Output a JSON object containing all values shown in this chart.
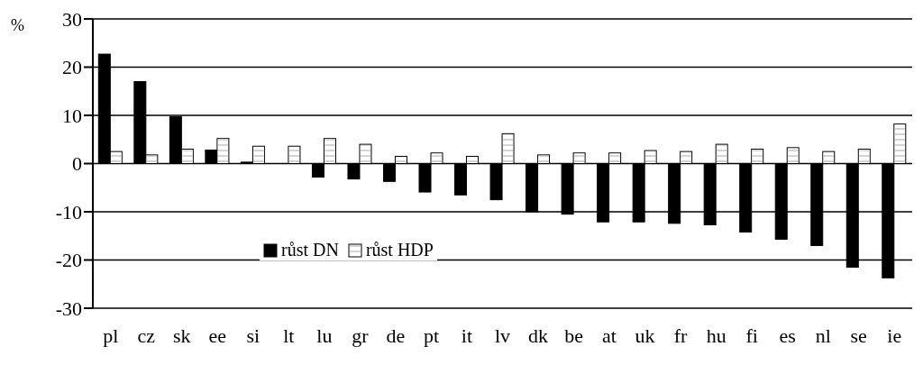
{
  "chart_data": {
    "type": "bar",
    "ylabel": "%",
    "categories": [
      "pl",
      "cz",
      "sk",
      "ee",
      "si",
      "lt",
      "lu",
      "gr",
      "de",
      "pt",
      "it",
      "lv",
      "dk",
      "be",
      "at",
      "uk",
      "fr",
      "hu",
      "fi",
      "es",
      "nl",
      "se",
      "ie"
    ],
    "series": [
      {
        "name": "růst DN",
        "color": "#000000",
        "values": [
          22.7,
          17,
          9.7,
          2.8,
          0.3,
          0,
          -2.8,
          -3.2,
          -3.7,
          -5.9,
          -6.5,
          -7.5,
          -10,
          -10.5,
          -12.1,
          -12.1,
          -12.4,
          -12.7,
          -14.2,
          -15.7,
          -17,
          -21.5,
          -23.7
        ]
      },
      {
        "name": "růst HDP",
        "color": "#ffffff",
        "values": [
          2.5,
          1.8,
          3,
          5.2,
          3.6,
          3.6,
          5.2,
          4,
          1.5,
          2.2,
          1.5,
          6.2,
          1.8,
          2.2,
          2.2,
          2.7,
          2.5,
          4,
          3,
          3.3,
          2.5,
          3,
          8.2
        ]
      }
    ],
    "ylim": [
      -30,
      30
    ],
    "yticks": [
      -30,
      -20,
      -10,
      0,
      10,
      20,
      30
    ],
    "grid": "y",
    "legend": "center left"
  }
}
